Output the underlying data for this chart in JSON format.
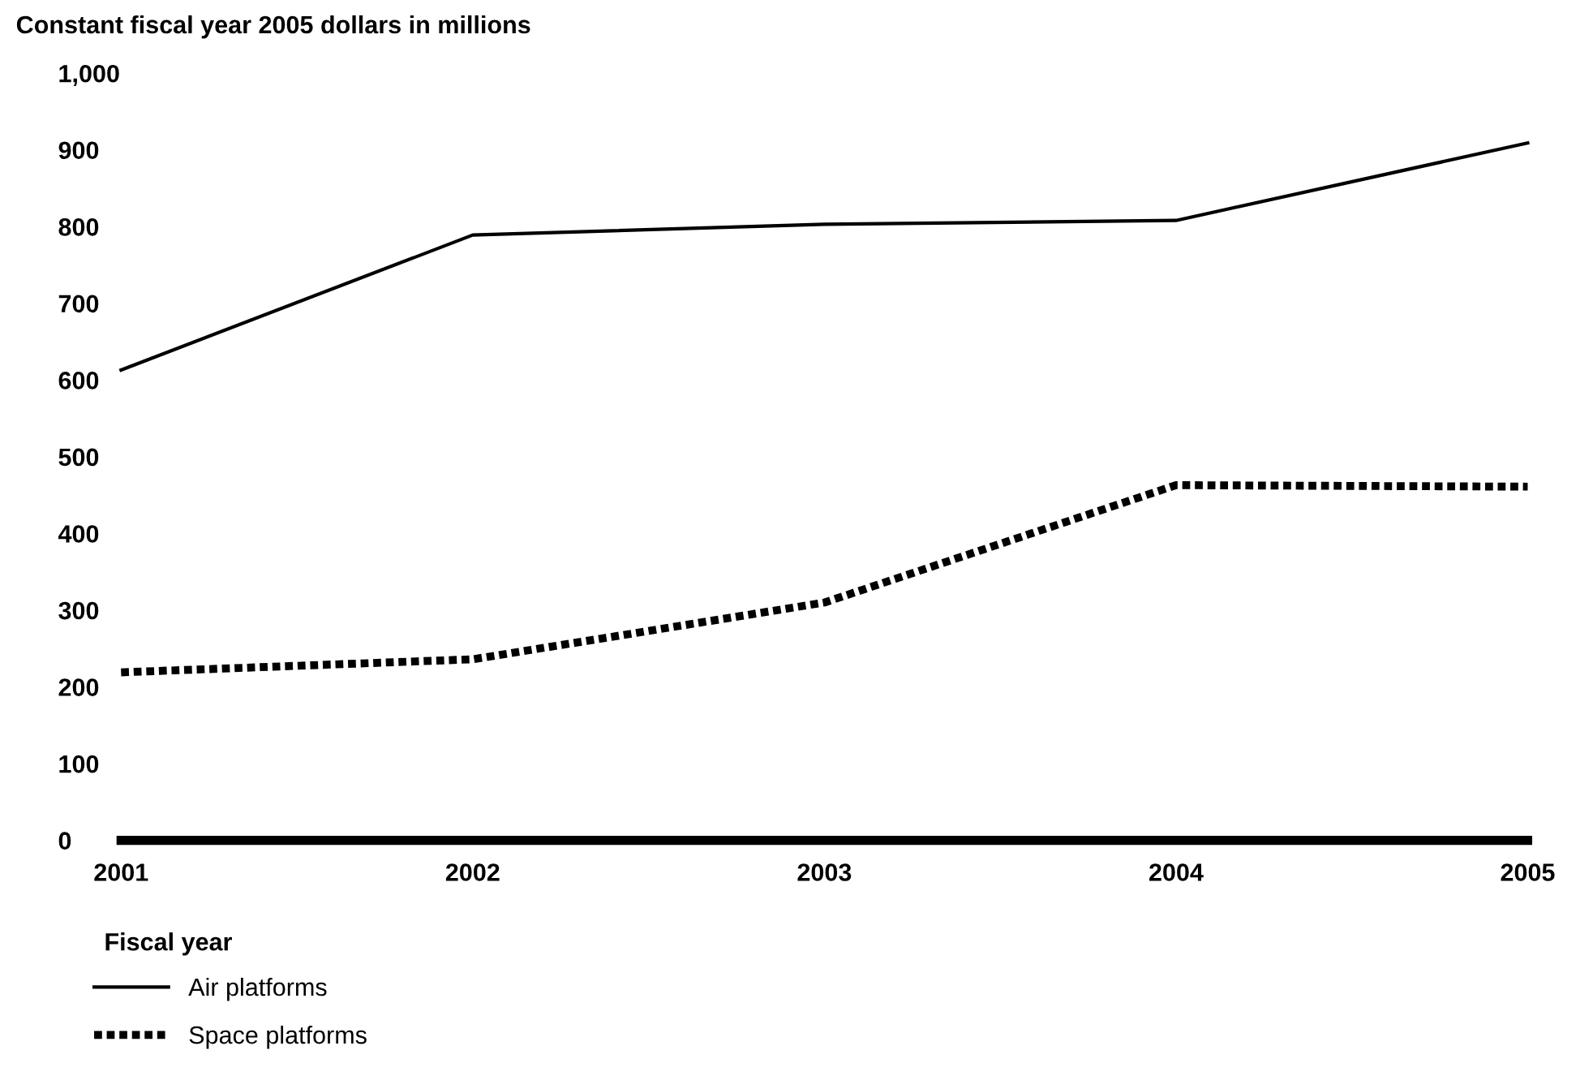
{
  "chart_data": {
    "type": "line",
    "ylabel": "Constant fiscal year 2005 dollars in millions",
    "xlabel": "Fiscal year",
    "x": [
      2001,
      2002,
      2003,
      2004,
      2005
    ],
    "xlim": [
      2001,
      2005
    ],
    "xticks": [
      2001,
      2002,
      2003,
      2004,
      2005
    ],
    "ylim": [
      0,
      1000
    ],
    "yticks": [
      0,
      100,
      200,
      300,
      400,
      500,
      600,
      700,
      800,
      900,
      {
        "value": 1000,
        "label": "1,000"
      }
    ],
    "grid": false,
    "legend": "bottom left",
    "marker": "none",
    "series": [
      {
        "name": "Air platforms",
        "color": "#000000",
        "line_style": "solid",
        "values": [
          613,
          789,
          803,
          808,
          909
        ]
      },
      {
        "name": "Space platforms",
        "color": "#000000",
        "line_style": "dotted",
        "values": [
          219,
          236,
          310,
          463,
          461
        ]
      }
    ]
  }
}
